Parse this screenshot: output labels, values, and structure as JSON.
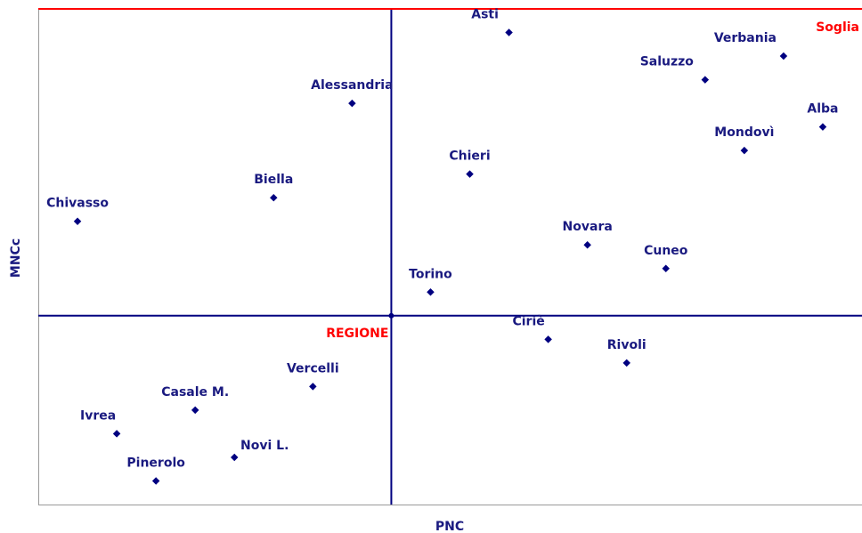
{
  "chart_data": {
    "type": "scatter",
    "xlabel": "PNC",
    "ylabel": "MNCc",
    "labels": [
      "Asti",
      "Verbania",
      "Saluzzo",
      "Alba",
      "Mondovì",
      "Alessandria",
      "Chieri",
      "Biella",
      "Chivasso",
      "Novara",
      "Cuneo",
      "Torino",
      "Ciriè",
      "Rivoli",
      "Vercelli",
      "Casale M.",
      "Ivrea",
      "Novi L.",
      "Pinerolo"
    ],
    "x": [
      12,
      19,
      17,
      20,
      18,
      8,
      11,
      6,
      1,
      14,
      16,
      10,
      13,
      15,
      7,
      4,
      2,
      5,
      3
    ],
    "values": [
      20,
      19,
      18,
      16,
      15,
      17,
      14,
      13,
      12,
      11,
      10,
      9,
      7,
      6,
      5,
      4,
      3,
      2,
      1
    ],
    "color": "#000080",
    "reference": {
      "label": "REGIONE",
      "x": 9,
      "y": 8,
      "color": "#000080",
      "label_color": "#ff0000"
    },
    "threshold": {
      "label": "Soglia",
      "value": 21,
      "color": "#ff0000"
    },
    "xlim": [
      0,
      21
    ],
    "ylim": [
      0,
      21
    ]
  }
}
